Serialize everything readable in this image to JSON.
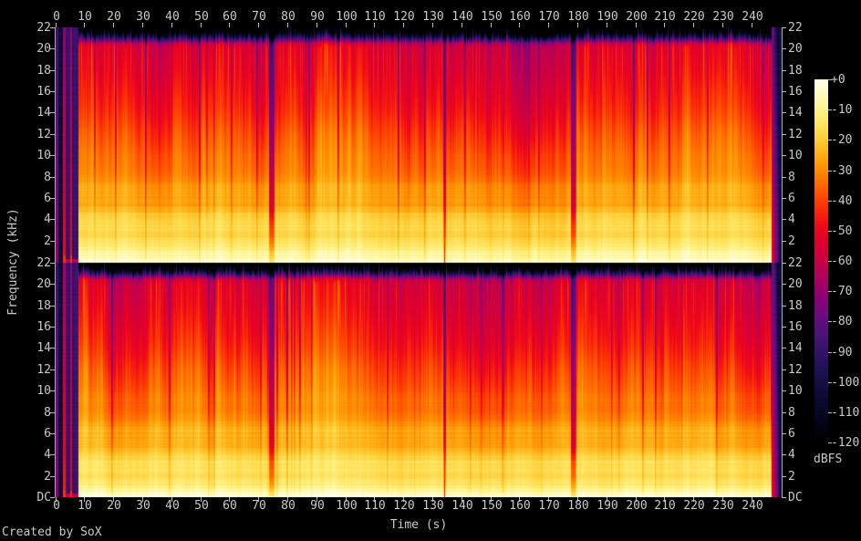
{
  "labels": {
    "xlabel": "Time (s)",
    "ylabel": "Frequency (kHz)",
    "colorbar_label": "dBFS",
    "credit": "Created by SoX"
  },
  "axes": {
    "time_tick_labels": [
      "0",
      "10",
      "20",
      "30",
      "40",
      "50",
      "60",
      "70",
      "80",
      "90",
      "100",
      "110",
      "120",
      "130",
      "140",
      "150",
      "160",
      "170",
      "180",
      "190",
      "200",
      "210",
      "220",
      "230",
      "240"
    ],
    "time_tick_values": [
      0,
      10,
      20,
      30,
      40,
      50,
      60,
      70,
      80,
      90,
      100,
      110,
      120,
      130,
      140,
      150,
      160,
      170,
      180,
      190,
      200,
      210,
      220,
      230,
      240
    ],
    "freq_tick_labels": [
      "22",
      "20",
      "18",
      "16",
      "14",
      "12",
      "10",
      "8",
      "6",
      "4",
      "2"
    ],
    "freq_tick_values": [
      22,
      20,
      18,
      16,
      14,
      12,
      10,
      8,
      6,
      4,
      2
    ],
    "dc_label": "DC",
    "colorbar_tick_labels": [
      "+0",
      "-10",
      "-20",
      "-30",
      "-40",
      "-50",
      "-60",
      "-70",
      "-80",
      "-90",
      "-100",
      "-110",
      "-120"
    ]
  },
  "chart_data": {
    "type": "heatmap",
    "subtype": "audio-spectrogram-stereo",
    "title": "",
    "xlabel": "Time (s)",
    "ylabel": "Frequency (kHz)",
    "x_range_s": [
      0,
      250.3
    ],
    "x_tick_step_s": 10,
    "y_range_khz": [
      0,
      22
    ],
    "y_tick_step_khz": 2,
    "panels": [
      {
        "name": "channel-1-left",
        "freq_ticks_khz": [
          22,
          20,
          18,
          16,
          14,
          12,
          10,
          8,
          6,
          4,
          2
        ]
      },
      {
        "name": "channel-2-right",
        "freq_ticks_khz": [
          22,
          20,
          18,
          16,
          14,
          12,
          10,
          8,
          6,
          4,
          2
        ],
        "bottom_tick": "DC"
      }
    ],
    "colorbar": {
      "label": "dBFS",
      "range_db": [
        -120,
        0
      ],
      "tick_step_db": 10,
      "palette_stops_db_rgb": [
        [
          0,
          [
            255,
            255,
            235
          ]
        ],
        [
          -6,
          [
            255,
            250,
            180
          ]
        ],
        [
          -12,
          [
            255,
            238,
            120
          ]
        ],
        [
          -18,
          [
            255,
            215,
            70
          ]
        ],
        [
          -24,
          [
            255,
            180,
            25
          ]
        ],
        [
          -30,
          [
            255,
            140,
            0
          ]
        ],
        [
          -36,
          [
            255,
            95,
            0
          ]
        ],
        [
          -42,
          [
            252,
            50,
            5
          ]
        ],
        [
          -48,
          [
            240,
            10,
            25
          ]
        ],
        [
          -54,
          [
            222,
            0,
            45
          ]
        ],
        [
          -60,
          [
            200,
            0,
            70
          ]
        ],
        [
          -66,
          [
            172,
            0,
            96
          ]
        ],
        [
          -72,
          [
            140,
            0,
            118
          ]
        ],
        [
          -78,
          [
            108,
            12,
            128
          ]
        ],
        [
          -84,
          [
            78,
            18,
            120
          ]
        ],
        [
          -90,
          [
            52,
            18,
            104
          ]
        ],
        [
          -96,
          [
            32,
            16,
            84
          ]
        ],
        [
          -102,
          [
            18,
            12,
            62
          ]
        ],
        [
          -108,
          [
            8,
            8,
            42
          ]
        ],
        [
          -114,
          [
            3,
            3,
            22
          ]
        ],
        [
          -120,
          [
            0,
            0,
            0
          ]
        ]
      ]
    },
    "content_summary": {
      "description": "Two stacked spectrogram panels (stereo left/right channels) of ~250 s of music. Energy is strongest (yellow-white) near DC, fading through orange, red and purple to near-black above the ~20.5 kHz encoding cutoff. Dense vertical beat striping throughout; quiet purple gaps separate four tracks.",
      "bandwidth_cutoff_khz": 20.5,
      "base_spectrum_db_by_khz": [
        [
          0,
          -3
        ],
        [
          0.4,
          -8
        ],
        [
          1,
          -11
        ],
        [
          2,
          -14
        ],
        [
          3,
          -17
        ],
        [
          4,
          -20
        ],
        [
          6,
          -26
        ],
        [
          8,
          -31
        ],
        [
          10,
          -35
        ],
        [
          12,
          -39
        ],
        [
          14,
          -44
        ],
        [
          16,
          -48
        ],
        [
          18,
          -52
        ],
        [
          20,
          -55
        ],
        [
          20.5,
          -58
        ],
        [
          21,
          -78
        ],
        [
          21.5,
          -96
        ],
        [
          22,
          -110
        ]
      ],
      "segments": [
        {
          "t0": 0,
          "t1": 2.25,
          "type": "silence"
        },
        {
          "t0": 2.25,
          "t1": 7.6,
          "type": "intro-transients",
          "clicks": [
            [
              2.35,
              3.15
            ],
            [
              4.75,
              5.55
            ]
          ]
        },
        {
          "t0": 7.6,
          "t1": 73.4,
          "type": "music",
          "label": "track 1",
          "level": 0
        },
        {
          "t0": 73.4,
          "t1": 75.3,
          "type": "gap",
          "depth_db": 30
        },
        {
          "t0": 75.3,
          "t1": 133.6,
          "type": "music",
          "label": "track 2",
          "level": 1
        },
        {
          "t0": 133.6,
          "t1": 134.4,
          "type": "gap",
          "depth_db": 26,
          "line": true
        },
        {
          "t0": 134.4,
          "t1": 177.4,
          "type": "music",
          "label": "track 3",
          "level": -1
        },
        {
          "t0": 177.4,
          "t1": 179.3,
          "type": "gap",
          "depth_db": 32
        },
        {
          "t0": 179.3,
          "t1": 246.6,
          "type": "music",
          "label": "track 4",
          "level": 0.5
        },
        {
          "t0": 246.6,
          "t1": 250.3,
          "type": "silence",
          "fade_s": 2.6
        }
      ]
    }
  }
}
